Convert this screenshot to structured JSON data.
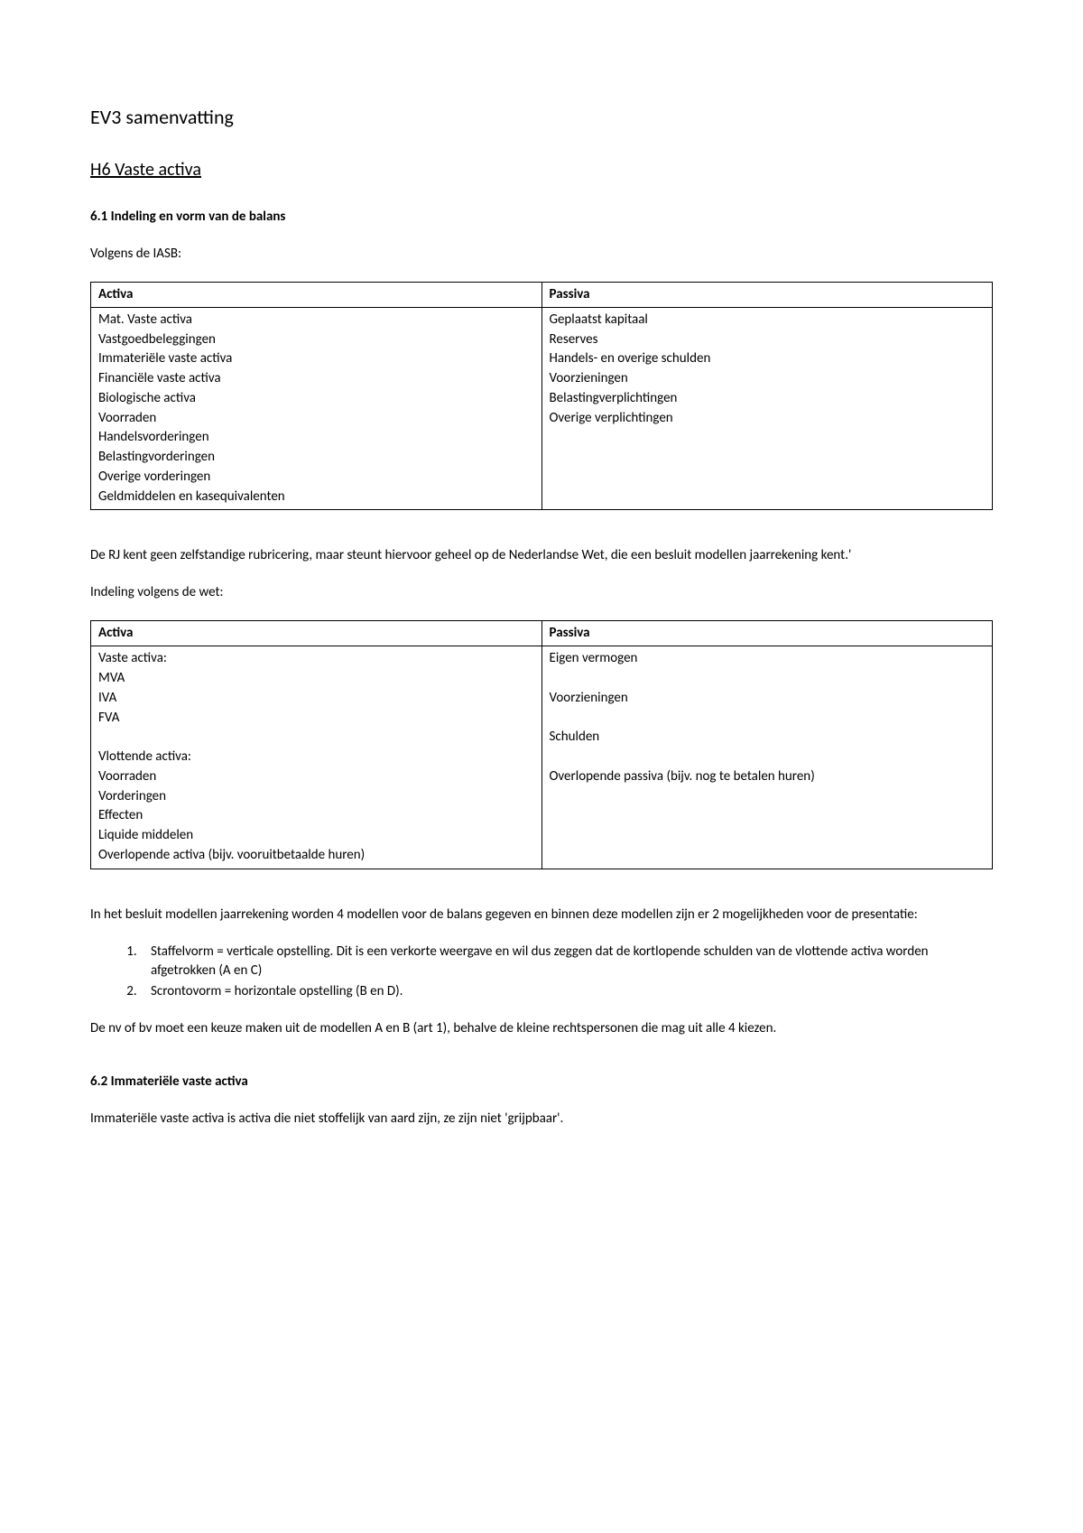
{
  "title": "EV3 samenvatting",
  "subtitle": "H6 Vaste activa",
  "section61": {
    "heading": "6.1 Indeling en vorm van de balans",
    "intro": "Volgens de IASB:",
    "table": {
      "header_activa": "Activa",
      "header_passiva": "Passiva",
      "activa": [
        "Mat. Vaste activa",
        "Vastgoedbeleggingen",
        "Immateriële vaste activa",
        "Financiële vaste activa",
        "Biologische activa",
        "Voorraden",
        "Handelsvorderingen",
        "Belastingvorderingen",
        "Overige vorderingen",
        "Geldmiddelen en kasequivalenten"
      ],
      "passiva": [
        "Geplaatst kapitaal",
        "Reserves",
        "Handels- en overige schulden",
        "Voorzieningen",
        "Belastingverplichtingen",
        "Overige verplichtingen"
      ]
    },
    "para_rj": "De RJ kent geen zelfstandige rubricering, maar steunt hiervoor geheel op de Nederlandse Wet, die een besluit modellen jaarrekening kent.'",
    "intro_wet": "Indeling volgens de wet:",
    "table_wet": {
      "header_activa": "Activa",
      "header_passiva": "Passiva",
      "activa": [
        "Vaste activa:",
        "MVA",
        "IVA",
        "FVA",
        "",
        "Vlottende activa:",
        "Voorraden",
        "Vorderingen",
        "Effecten",
        "Liquide middelen",
        "Overlopende activa (bijv. vooruitbetaalde huren)"
      ],
      "passiva": [
        "Eigen vermogen",
        "",
        "Voorzieningen",
        "",
        "Schulden",
        "",
        "Overlopende passiva (bijv. nog te betalen huren)"
      ]
    },
    "para_modellen": "In het besluit modellen jaarrekening worden 4 modellen voor de balans gegeven en binnen deze modellen zijn er 2 mogelijkheden voor de presentatie:",
    "list": {
      "item1": "Staffelvorm = verticale opstelling. Dit is een verkorte weergave en wil dus zeggen dat de kortlopende schulden van de vlottende activa worden afgetrokken (A en C)",
      "item2": "Scrontovorm = horizontale opstelling (B en D)."
    },
    "para_keuze": "De nv of bv moet een keuze maken uit de modellen A en B (art 1), behalve de kleine rechtspersonen die mag uit alle 4 kiezen."
  },
  "section62": {
    "heading": "6.2 Immateriële vaste activa",
    "para": "Immateriële vaste activa is activa die niet stoffelijk van aard zijn, ze zijn niet 'grijpbaar'."
  },
  "style": {
    "background_color": "#ffffff",
    "text_color": "#000000",
    "border_color": "#000000",
    "title_fontsize": 22,
    "subtitle_fontsize": 20,
    "body_fontsize": 15,
    "font_family": "Calibri"
  }
}
